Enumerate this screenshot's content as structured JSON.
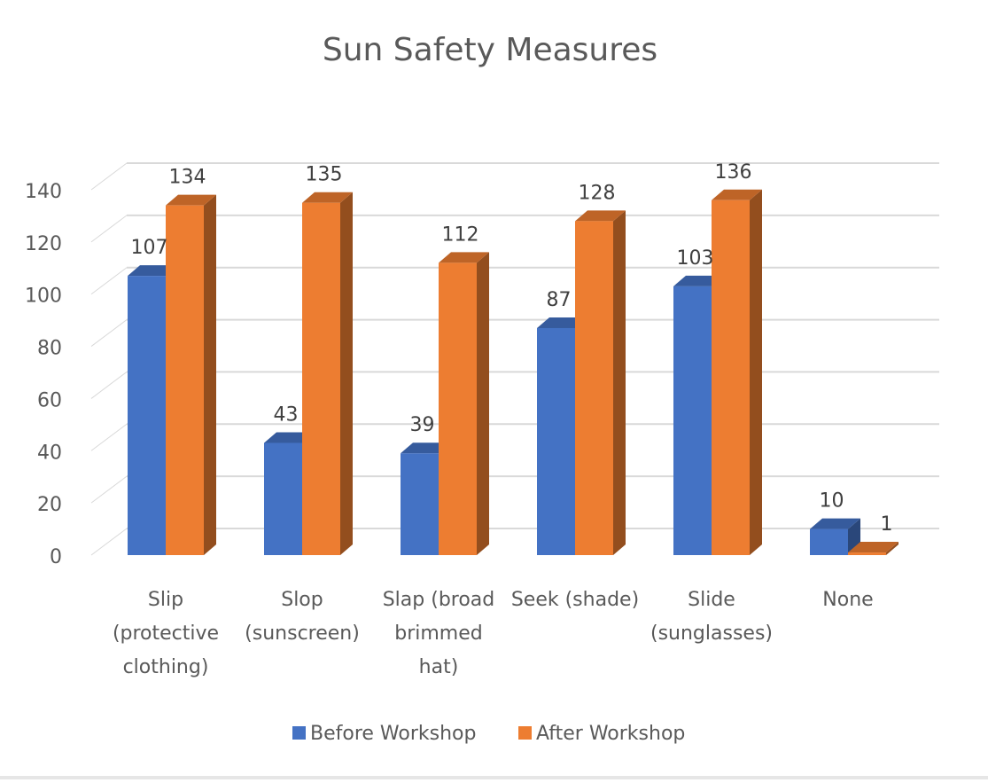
{
  "chart_data": {
    "type": "bar",
    "title": "Sun Safety Measures",
    "xlabel": "",
    "ylabel": "",
    "categories": [
      [
        "Slip",
        "(protective",
        "clothing)"
      ],
      [
        "Slop",
        "(sunscreen)"
      ],
      [
        "Slap (broad",
        "brimmed",
        "hat)"
      ],
      [
        "Seek (shade)"
      ],
      [
        "Slide",
        "(sunglasses)"
      ],
      [
        "None"
      ]
    ],
    "series": [
      {
        "name": "Before Workshop",
        "values": [
          107,
          43,
          39,
          87,
          103,
          10
        ],
        "color": "#4472C4"
      },
      {
        "name": "After Workshop",
        "values": [
          134,
          135,
          112,
          128,
          136,
          1
        ],
        "color": "#ED7D31"
      }
    ],
    "ylim": [
      0,
      140
    ],
    "yticks": [
      0,
      20,
      40,
      60,
      80,
      100,
      120,
      140
    ],
    "grid": true,
    "legend": "bottom",
    "style": "3d-clustered-column"
  }
}
